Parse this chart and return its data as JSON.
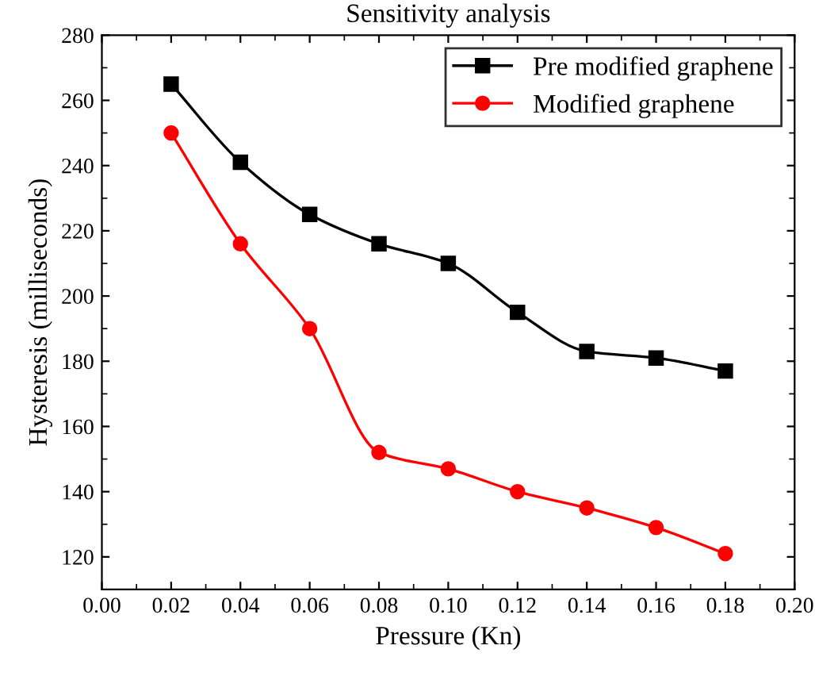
{
  "chart_data": {
    "type": "line",
    "title": "Sensitivity analysis",
    "xlabel": "Pressure (Kn)",
    "ylabel": "Hysteresis (milliseconds)",
    "x": [
      0.02,
      0.04,
      0.06,
      0.08,
      0.1,
      0.12,
      0.14,
      0.16,
      0.18
    ],
    "series": [
      {
        "name": "Pre modified graphene",
        "color": "#000000",
        "marker": "square",
        "values": [
          265,
          241,
          225,
          216,
          210,
          195,
          183,
          181,
          177
        ]
      },
      {
        "name": "Modified graphene",
        "color": "#ff0000",
        "marker": "circle",
        "values": [
          250,
          216,
          190,
          152,
          147,
          140,
          135,
          129,
          121
        ]
      }
    ],
    "xlim": [
      0.0,
      0.2
    ],
    "ylim": [
      110,
      280
    ],
    "xticks": [
      {
        "value": 0.0,
        "label": "0.00"
      },
      {
        "value": 0.02,
        "label": "0.02"
      },
      {
        "value": 0.04,
        "label": "0.04"
      },
      {
        "value": 0.06,
        "label": "0.06"
      },
      {
        "value": 0.08,
        "label": "0.08"
      },
      {
        "value": 0.1,
        "label": "0.10"
      },
      {
        "value": 0.12,
        "label": "0.12"
      },
      {
        "value": 0.14,
        "label": "0.14"
      },
      {
        "value": 0.16,
        "label": "0.16"
      },
      {
        "value": 0.18,
        "label": "0.18"
      },
      {
        "value": 0.2,
        "label": "0.20"
      }
    ],
    "yticks": [
      120,
      140,
      160,
      180,
      200,
      220,
      240,
      260,
      280
    ],
    "grid": false,
    "legend": "top right",
    "line_style": "solid"
  }
}
